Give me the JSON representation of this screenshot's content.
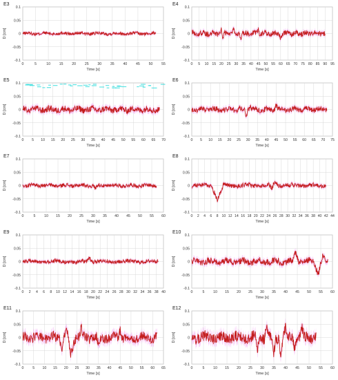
{
  "colors": {
    "signal": "#c41e1e",
    "band": "#ee88ee",
    "grid": "#d8d8d8",
    "axis": "#9a9a9a",
    "cyan_mark": "#33dddd"
  },
  "chart_data": [
    {
      "type": "line",
      "label": "E3",
      "xlabel": "Time [s]",
      "ylabel": "D [cm]",
      "xlim": [
        0,
        55
      ],
      "ylim": [
        -0.1,
        0.1
      ],
      "xticks": [
        "0",
        "5",
        "10",
        "15",
        "20",
        "25",
        "30",
        "35",
        "40",
        "45",
        "50",
        "55"
      ],
      "yticks": [
        "0.1",
        "0.05",
        "0",
        "-0.05",
        "-0.1"
      ],
      "x_end": 52,
      "amplitude": 0.006,
      "spikes": []
    },
    {
      "type": "line",
      "label": "E4",
      "xlabel": "Time [s]",
      "ylabel": "D [cm]",
      "xlim": [
        0,
        95
      ],
      "ylim": [
        -0.1,
        0.1
      ],
      "xticks": [
        "0",
        "5",
        "10",
        "15",
        "20",
        "25",
        "30",
        "35",
        "40",
        "45",
        "50",
        "55",
        "60",
        "65",
        "70",
        "75",
        "80",
        "85",
        "90",
        "95"
      ],
      "yticks": [
        "0.1",
        "0.05",
        "0",
        "-0.05",
        "-0.1"
      ],
      "x_end": 90,
      "amplitude": 0.01,
      "spikes": [
        {
          "x": 20,
          "y": 0.02
        },
        {
          "x": 21,
          "y": -0.025
        },
        {
          "x": 28,
          "y": 0.022
        },
        {
          "x": 33,
          "y": -0.02
        },
        {
          "x": 45,
          "y": 0.018
        },
        {
          "x": 60,
          "y": -0.015
        }
      ]
    },
    {
      "type": "line",
      "label": "E5",
      "xlabel": "Time [s]",
      "ylabel": "D [cm]",
      "xlim": [
        0,
        70
      ],
      "ylim": [
        -0.1,
        0.1
      ],
      "xticks": [
        "0",
        "5",
        "10",
        "15",
        "20",
        "25",
        "30",
        "35",
        "40",
        "45",
        "50",
        "55",
        "60",
        "65",
        "70"
      ],
      "yticks": [
        "0.1",
        "0.05",
        "0",
        "-0.05",
        "-0.1"
      ],
      "x_end": 68,
      "amplitude": 0.012,
      "spikes": []
    },
    {
      "type": "line",
      "label": "E6",
      "xlabel": "Time [s]",
      "ylabel": "D [cm]",
      "xlim": [
        0,
        75
      ],
      "ylim": [
        -0.1,
        0.1
      ],
      "xticks": [
        "0",
        "5",
        "10",
        "15",
        "20",
        "25",
        "30",
        "35",
        "40",
        "45",
        "50",
        "55",
        "60",
        "65",
        "70",
        "75"
      ],
      "yticks": [
        "0.1",
        "0.05",
        "0",
        "-0.05",
        "-0.1"
      ],
      "x_end": 72,
      "amplitude": 0.01,
      "spikes": [
        {
          "x": 29,
          "y": -0.022
        },
        {
          "x": 31,
          "y": 0.015
        },
        {
          "x": 45,
          "y": 0.018
        }
      ]
    },
    {
      "type": "line",
      "label": "E7",
      "xlabel": "Time [s]",
      "ylabel": "D [cm]",
      "xlim": [
        0,
        60
      ],
      "ylim": [
        -0.1,
        0.1
      ],
      "xticks": [
        "0",
        "5",
        "10",
        "15",
        "20",
        "25",
        "30",
        "35",
        "40",
        "45",
        "50",
        "55",
        "60"
      ],
      "yticks": [
        "0.1",
        "0.05",
        "0",
        "-0.05",
        "-0.1"
      ],
      "x_end": 57,
      "amplitude": 0.007,
      "spikes": [
        {
          "x": 31,
          "y": -0.012
        }
      ]
    },
    {
      "type": "line",
      "label": "E8",
      "xlabel": "Time [s]",
      "ylabel": "D [cm]",
      "xlim": [
        0,
        44
      ],
      "ylim": [
        -0.1,
        0.1
      ],
      "xticks": [
        "0",
        "2",
        "4",
        "6",
        "8",
        "10",
        "12",
        "14",
        "16",
        "18",
        "20",
        "22",
        "24",
        "26",
        "28",
        "30",
        "32",
        "34",
        "36",
        "38",
        "40",
        "42",
        "44"
      ],
      "yticks": [
        "0.1",
        "0.05",
        "0",
        "-0.05",
        "-0.1"
      ],
      "x_end": 42,
      "amplitude": 0.008,
      "spikes": [
        {
          "x": 7,
          "y": -0.025
        },
        {
          "x": 8,
          "y": -0.06
        },
        {
          "x": 9,
          "y": -0.03
        },
        {
          "x": 26,
          "y": 0.018
        },
        {
          "x": 25,
          "y": -0.012
        }
      ]
    },
    {
      "type": "line",
      "label": "E9",
      "xlabel": "Time [s]",
      "ylabel": "D [cm]",
      "xlim": [
        0,
        40
      ],
      "ylim": [
        -0.1,
        0.1
      ],
      "xticks": [
        "0",
        "2",
        "4",
        "6",
        "8",
        "10",
        "12",
        "14",
        "16",
        "18",
        "20",
        "22",
        "24",
        "26",
        "28",
        "30",
        "32",
        "34",
        "36",
        "38",
        "40"
      ],
      "yticks": [
        "0.1",
        "0.05",
        "0",
        "-0.05",
        "-0.1"
      ],
      "x_end": 38.5,
      "amplitude": 0.007,
      "spikes": [
        {
          "x": 19,
          "y": 0.015
        },
        {
          "x": 15,
          "y": -0.01
        }
      ]
    },
    {
      "type": "line",
      "label": "E10",
      "xlabel": "Time [s]",
      "ylabel": "D [cm]",
      "xlim": [
        0,
        60
      ],
      "ylim": [
        -0.1,
        0.1
      ],
      "xticks": [
        "0",
        "5",
        "10",
        "15",
        "20",
        "25",
        "30",
        "35",
        "40",
        "45",
        "50",
        "55",
        "60"
      ],
      "yticks": [
        "0.1",
        "0.05",
        "0",
        "-0.05",
        "-0.1"
      ],
      "x_end": 58,
      "amplitude": 0.012,
      "spikes": [
        {
          "x": 44,
          "y": 0.04
        },
        {
          "x": 45,
          "y": 0.015
        },
        {
          "x": 54,
          "y": -0.05
        },
        {
          "x": 53,
          "y": -0.03
        },
        {
          "x": 56,
          "y": 0.02
        },
        {
          "x": 38,
          "y": -0.015
        }
      ]
    },
    {
      "type": "line",
      "label": "E11",
      "xlabel": "Time [s]",
      "ylabel": "D [cm]",
      "xlim": [
        0,
        65
      ],
      "ylim": [
        -0.1,
        0.1
      ],
      "xticks": [
        "0",
        "5",
        "10",
        "15",
        "20",
        "25",
        "30",
        "35",
        "40",
        "45",
        "50",
        "55",
        "60",
        "65"
      ],
      "yticks": [
        "0.1",
        "0.05",
        "0",
        "-0.05",
        "-0.1"
      ],
      "x_end": 62,
      "amplitude": 0.018,
      "spikes": [
        {
          "x": 18,
          "y": -0.06
        },
        {
          "x": 20,
          "y": 0.03
        },
        {
          "x": 22,
          "y": -0.07
        },
        {
          "x": 23,
          "y": -0.05
        },
        {
          "x": 27,
          "y": 0.04
        },
        {
          "x": 35,
          "y": -0.03
        },
        {
          "x": 45,
          "y": 0.035
        }
      ]
    },
    {
      "type": "line",
      "label": "E12",
      "xlabel": "Time [s]",
      "ylabel": "D [cm]",
      "xlim": [
        0,
        60
      ],
      "ylim": [
        -0.1,
        0.1
      ],
      "xticks": [
        "0",
        "5",
        "10",
        "15",
        "20",
        "25",
        "30",
        "35",
        "40",
        "45",
        "50",
        "55",
        "60"
      ],
      "yticks": [
        "0.1",
        "0.05",
        "0",
        "-0.05",
        "-0.1"
      ],
      "x_end": 53,
      "amplitude": 0.02,
      "spikes": [
        {
          "x": 28,
          "y": -0.05
        },
        {
          "x": 32,
          "y": 0.045
        },
        {
          "x": 35,
          "y": -0.06
        },
        {
          "x": 38,
          "y": -0.08
        },
        {
          "x": 40,
          "y": 0.04
        },
        {
          "x": 44,
          "y": -0.04
        },
        {
          "x": 47,
          "y": 0.03
        }
      ]
    }
  ]
}
